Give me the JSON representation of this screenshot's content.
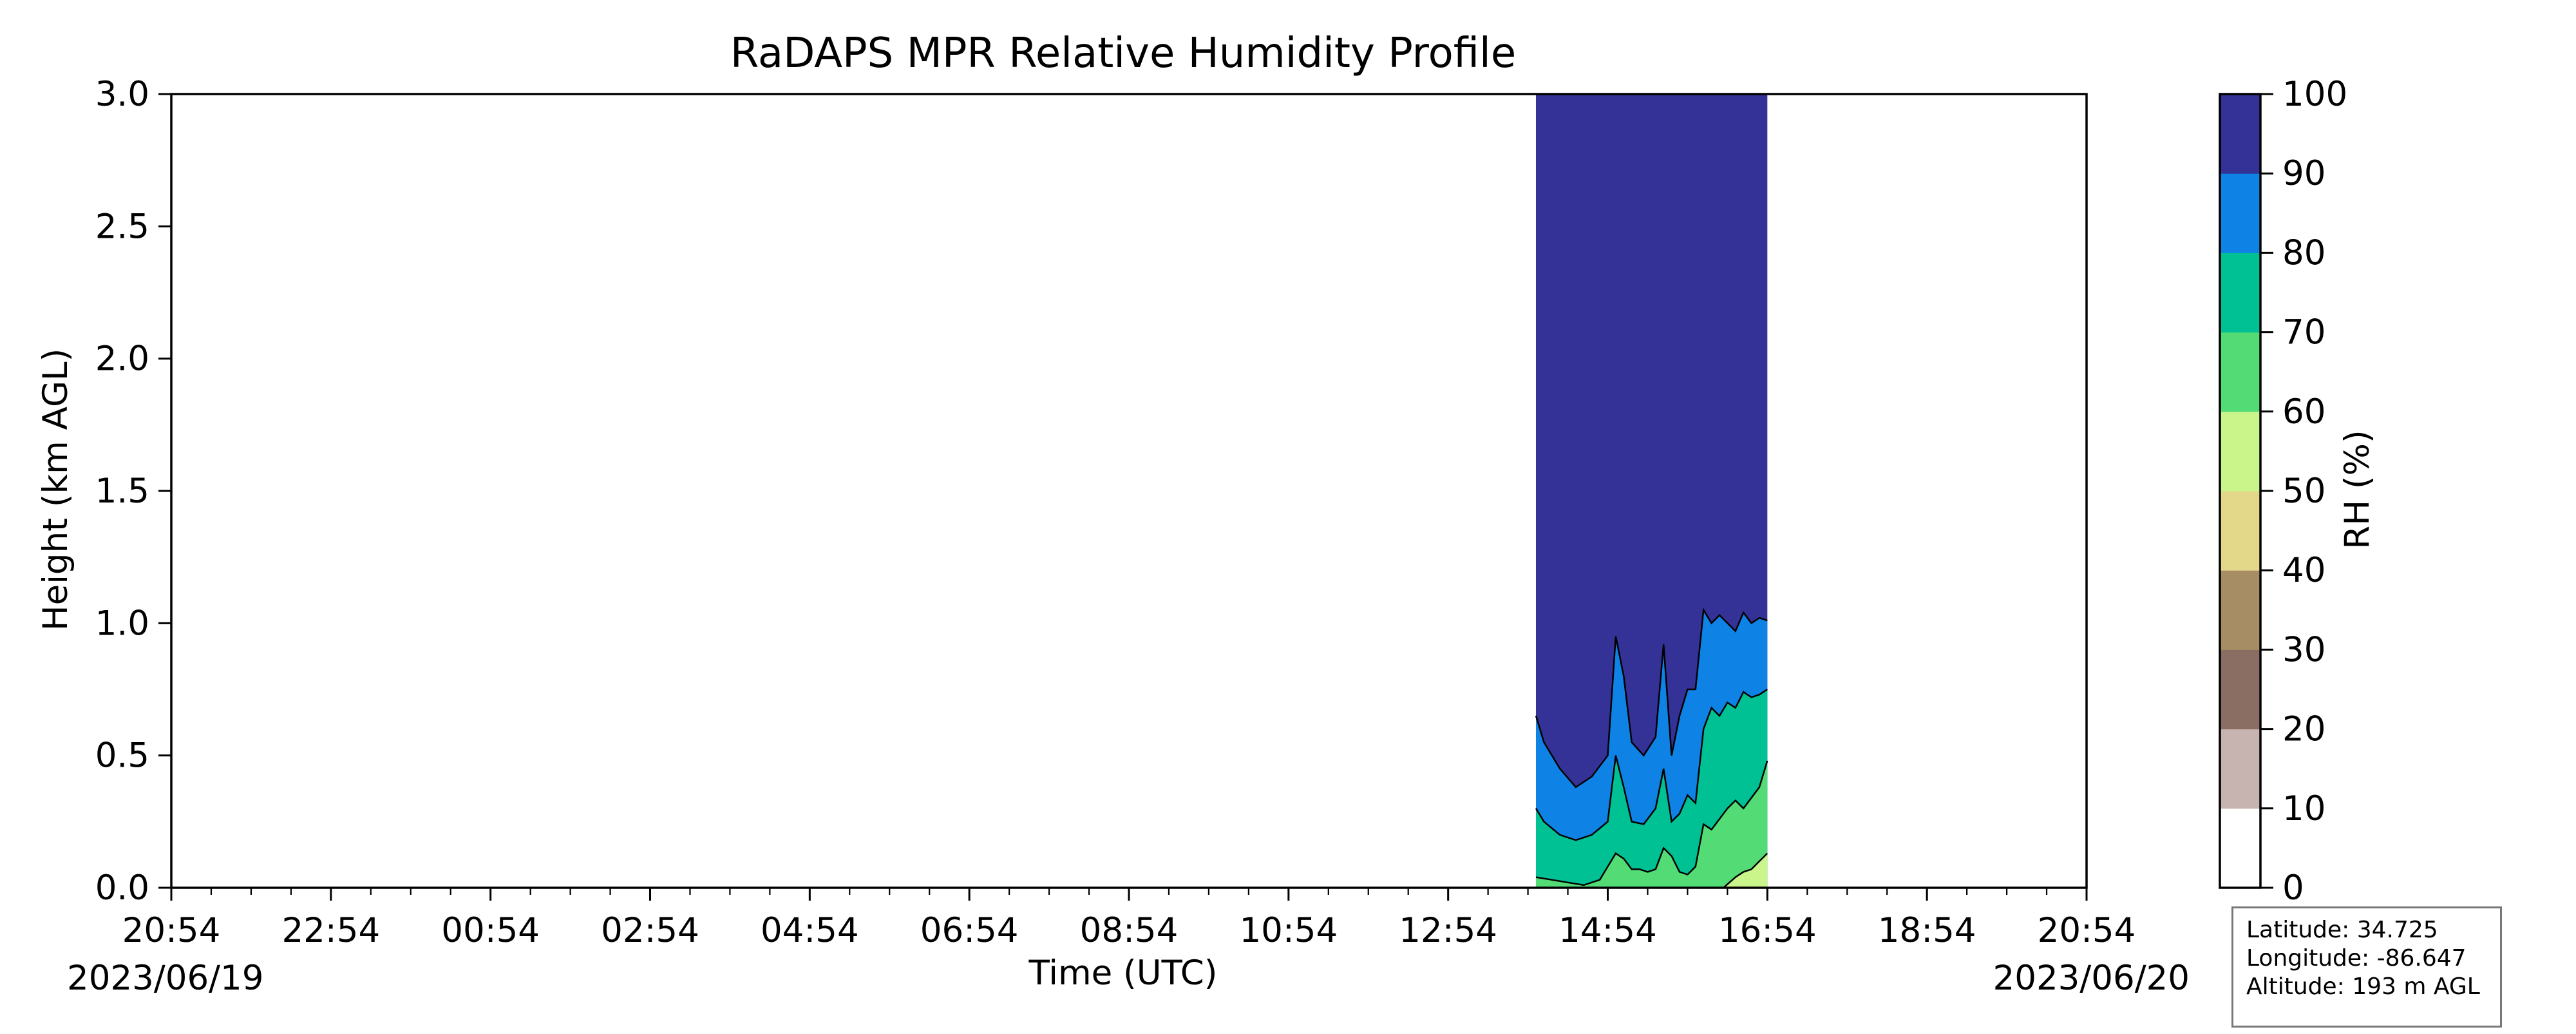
{
  "chart_data": {
    "type": "area",
    "title": "RaDAPS MPR Relative Humidity Profile",
    "xlabel": "Time (UTC)",
    "ylabel": "Height (km AGL)",
    "x_ticks": [
      "20:54",
      "22:54",
      "00:54",
      "02:54",
      "04:54",
      "06:54",
      "08:54",
      "10:54",
      "12:54",
      "14:54",
      "16:54",
      "18:54",
      "20:54"
    ],
    "x_start_date": "2023/06/19",
    "x_end_date": "2023/06/20",
    "y_ticks": [
      "0.0",
      "0.5",
      "1.0",
      "1.5",
      "2.0",
      "2.5",
      "3.0"
    ],
    "ylim": [
      0,
      3
    ],
    "colorbar": {
      "label": "RH (%)",
      "ticks": [
        "0",
        "10",
        "20",
        "30",
        "40",
        "50",
        "60",
        "70",
        "80",
        "90",
        "100"
      ],
      "bands": [
        {
          "range": [
            0,
            10
          ],
          "color": "#ffffff"
        },
        {
          "range": [
            10,
            20
          ],
          "color": "#c7b4b0"
        },
        {
          "range": [
            20,
            30
          ],
          "color": "#8b6e63"
        },
        {
          "range": [
            30,
            40
          ],
          "color": "#a78d64"
        },
        {
          "range": [
            40,
            50
          ],
          "color": "#e3d789"
        },
        {
          "range": [
            50,
            60
          ],
          "color": "#caf58b"
        },
        {
          "range": [
            60,
            70
          ],
          "color": "#53dc75"
        },
        {
          "range": [
            70,
            80
          ],
          "color": "#00c193"
        },
        {
          "range": [
            80,
            90
          ],
          "color": "#0e83e5"
        },
        {
          "range": [
            90,
            100
          ],
          "color": "#343197"
        }
      ]
    },
    "data_window_hours": [
      17.1,
      20.0
    ],
    "contours": [
      {
        "level": 90,
        "x_hours": [
          17.1,
          17.2,
          17.4,
          17.6,
          17.8,
          18.0,
          18.1,
          18.2,
          18.3,
          18.45,
          18.6,
          18.7,
          18.8,
          18.9,
          19.0,
          19.1,
          19.2,
          19.3,
          19.4,
          19.5,
          19.6,
          19.7,
          19.8,
          19.9,
          20.0
        ],
        "heights_km": [
          0.65,
          0.55,
          0.45,
          0.38,
          0.42,
          0.5,
          0.95,
          0.8,
          0.55,
          0.5,
          0.57,
          0.92,
          0.5,
          0.65,
          0.75,
          0.75,
          1.05,
          1.0,
          1.03,
          1.0,
          0.97,
          1.04,
          1.0,
          1.02,
          1.01
        ]
      },
      {
        "level": 80,
        "x_hours": [
          17.1,
          17.2,
          17.4,
          17.6,
          17.8,
          18.0,
          18.1,
          18.2,
          18.3,
          18.45,
          18.6,
          18.7,
          18.8,
          18.9,
          19.0,
          19.1,
          19.2,
          19.3,
          19.4,
          19.5,
          19.6,
          19.7,
          19.8,
          19.9,
          20.0
        ],
        "heights_km": [
          0.3,
          0.25,
          0.2,
          0.18,
          0.2,
          0.25,
          0.5,
          0.38,
          0.25,
          0.24,
          0.3,
          0.45,
          0.25,
          0.28,
          0.35,
          0.32,
          0.6,
          0.68,
          0.65,
          0.7,
          0.68,
          0.74,
          0.72,
          0.73,
          0.75
        ]
      },
      {
        "level": 70,
        "x_hours": [
          17.1,
          17.3,
          17.5,
          17.7,
          17.9,
          18.0,
          18.1,
          18.2,
          18.3,
          18.4,
          18.5,
          18.6,
          18.7,
          18.8,
          18.9,
          19.0,
          19.1,
          19.2,
          19.3,
          19.4,
          19.5,
          19.6,
          19.7,
          19.8,
          19.9,
          20.0
        ],
        "heights_km": [
          0.04,
          0.03,
          0.02,
          0.01,
          0.03,
          0.08,
          0.13,
          0.11,
          0.07,
          0.07,
          0.06,
          0.07,
          0.15,
          0.12,
          0.06,
          0.05,
          0.08,
          0.24,
          0.22,
          0.26,
          0.3,
          0.33,
          0.3,
          0.34,
          0.38,
          0.48
        ]
      },
      {
        "level": 60,
        "x_hours": [
          19.45,
          19.6,
          19.7,
          19.8,
          19.9,
          20.0
        ],
        "heights_km": [
          0.0,
          0.04,
          0.06,
          0.07,
          0.1,
          0.13
        ]
      }
    ]
  },
  "station": {
    "latitude": "Latitude: 34.725",
    "longitude": "Longitude: -86.647",
    "altitude": "Altitude: 193 m AGL"
  }
}
